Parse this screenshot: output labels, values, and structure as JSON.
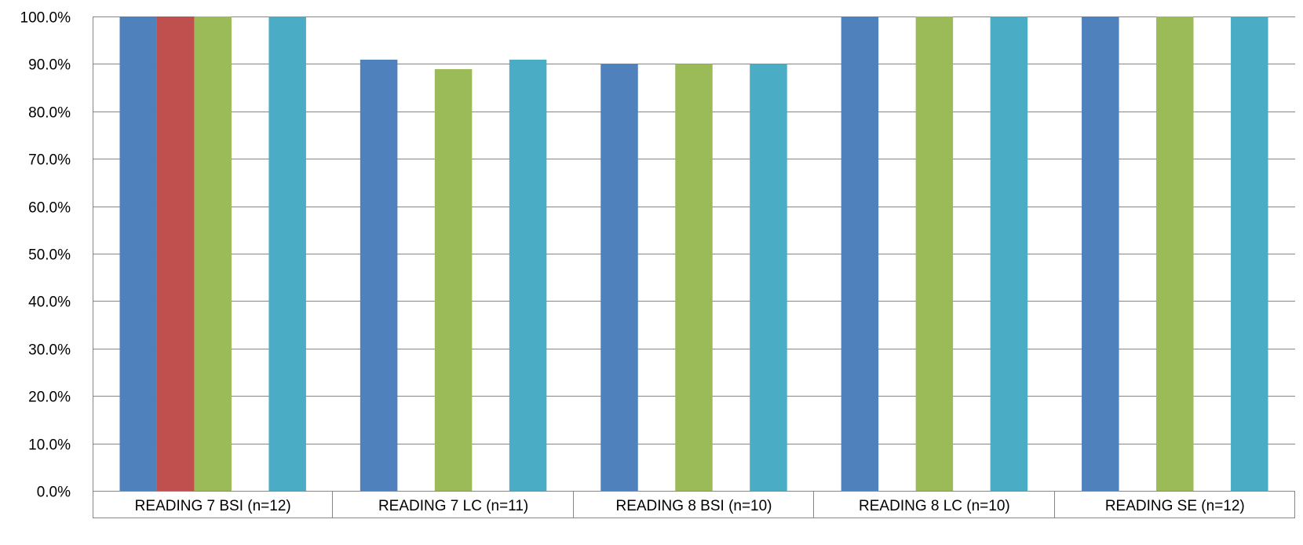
{
  "chart_data": {
    "type": "bar",
    "title": "",
    "xlabel": "",
    "ylabel": "",
    "ylim": [
      0,
      100
    ],
    "y_tick_step": 10,
    "y_tick_format": "percent_1dp",
    "grid": true,
    "legend": "none",
    "categories": [
      "READING 7 BSI (n=12)",
      "READING 7 LC (n=11)",
      "READING 8 BSI (n=10)",
      "READING 8 LC (n=10)",
      "READING SE  (n=12)"
    ],
    "series": [
      {
        "color": "#4f81bd",
        "values": [
          100,
          90.9,
          90,
          100,
          100
        ]
      },
      {
        "color": "#c0504d",
        "values": [
          100,
          0,
          0,
          0,
          0
        ]
      },
      {
        "color": "#9bbb59",
        "values": [
          100,
          88.9,
          90,
          100,
          100
        ]
      },
      {
        "color": "#8064a2",
        "values": [
          0,
          0,
          0,
          0,
          0
        ]
      },
      {
        "color": "#4bacc6",
        "values": [
          100,
          90.9,
          90,
          100,
          100
        ]
      }
    ]
  }
}
